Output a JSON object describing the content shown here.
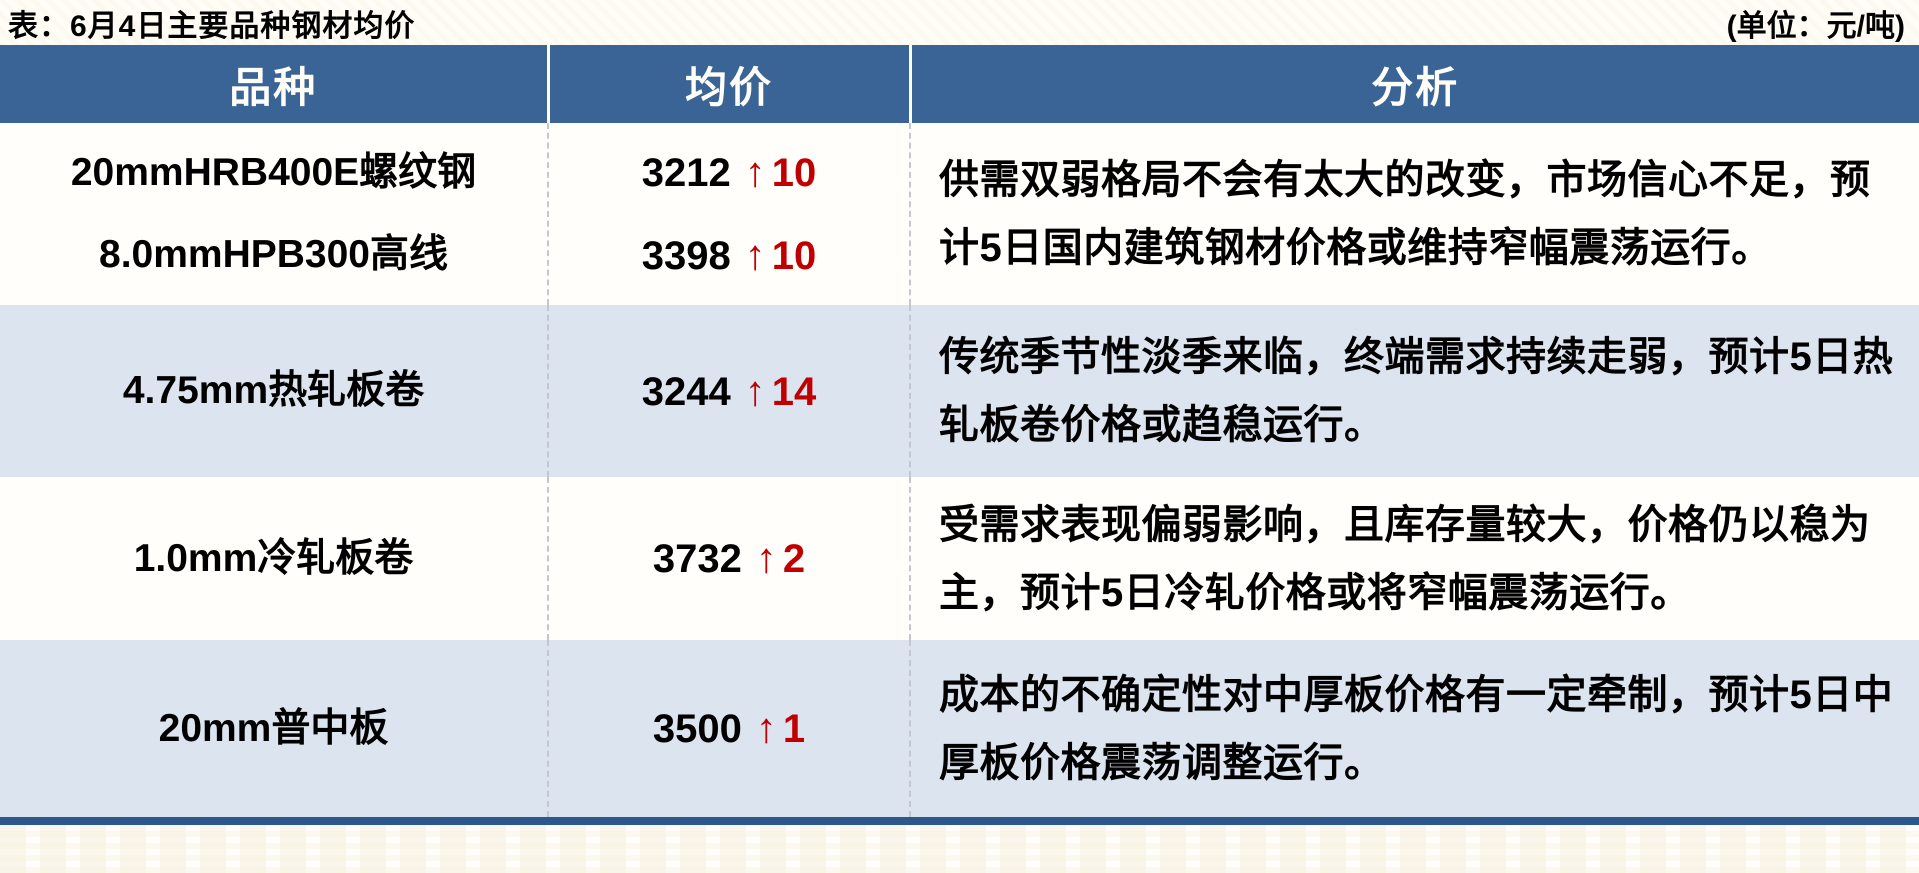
{
  "title": "表：6月4日主要品种钢材均价",
  "unit": "(单位：元/吨)",
  "colors": {
    "header_bg": "#3b6496",
    "alt_row_bg": "#dce4ef",
    "change_red": "#c00000",
    "bottom_border_blue": "#2c588e"
  },
  "table": {
    "headers": [
      "品种",
      "均价",
      "分析"
    ],
    "rows": [
      {
        "varieties": [
          {
            "name": "20mmHRB400E螺纹钢",
            "price": "3212",
            "arrow": "↑",
            "change": "10"
          },
          {
            "name": "8.0mmHPB300高线",
            "price": "3398",
            "arrow": "↑",
            "change": "10"
          }
        ],
        "analysis": "供需双弱格局不会有太大的改变，市场信心不足，预计5日国内建筑钢材价格或维持窄幅震荡运行。"
      },
      {
        "varieties": [
          {
            "name": "4.75mm热轧板卷",
            "price": "3244",
            "arrow": "↑",
            "change": "14"
          }
        ],
        "analysis": "传统季节性淡季来临，终端需求持续走弱，预计5日热轧板卷价格或趋稳运行。"
      },
      {
        "varieties": [
          {
            "name": "1.0mm冷轧板卷",
            "price": "3732",
            "arrow": "↑",
            "change": "2"
          }
        ],
        "analysis": "受需求表现偏弱影响，且库存量较大，价格仍以稳为主，预计5日冷轧价格或将窄幅震荡运行。"
      },
      {
        "varieties": [
          {
            "name": "20mm普中板",
            "price": "3500",
            "arrow": "↑",
            "change": "1"
          }
        ],
        "analysis": "成本的不确定性对中厚板价格有一定牵制，预计5日中厚板价格震荡调整运行。"
      }
    ]
  }
}
